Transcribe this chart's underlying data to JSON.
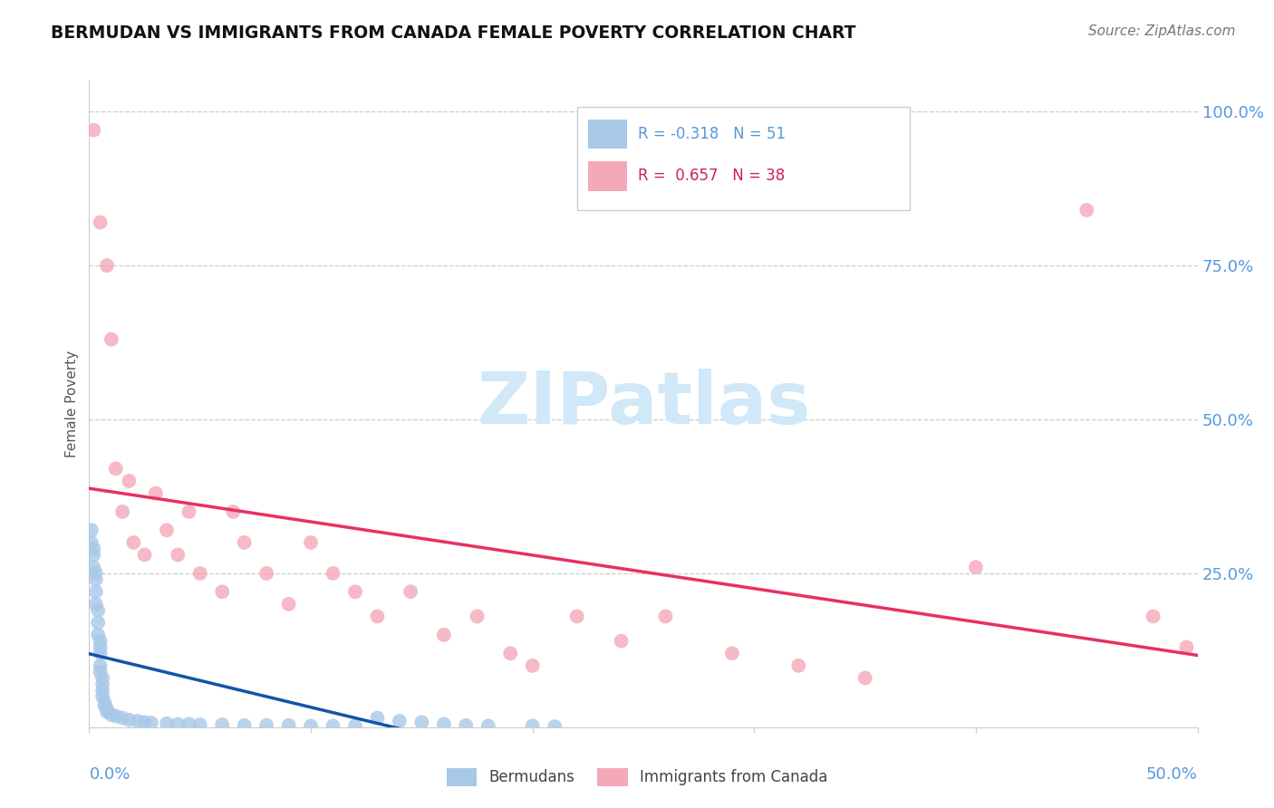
{
  "title": "BERMUDAN VS IMMIGRANTS FROM CANADA FEMALE POVERTY CORRELATION CHART",
  "source_text": "Source: ZipAtlas.com",
  "ylabel": "Female Poverty",
  "legend_label1": "Bermudans",
  "legend_label2": "Immigrants from Canada",
  "R1": -0.318,
  "N1": 51,
  "R2": 0.657,
  "N2": 38,
  "color1": "#A8C8E8",
  "color2": "#F4A8B8",
  "line_color1": "#1155AA",
  "line_color2": "#E83060",
  "axis_label_color": "#5599DD",
  "title_color": "#111111",
  "watermark_color": "#D0E8F8",
  "xlim": [
    0.0,
    0.5
  ],
  "ylim": [
    0.0,
    1.05
  ],
  "ytick_positions": [
    0.25,
    0.5,
    0.75,
    1.0
  ],
  "ytick_labels": [
    "25.0%",
    "50.0%",
    "75.0%",
    "100.0%"
  ],
  "blue_x": [
    0.001,
    0.001,
    0.002,
    0.002,
    0.002,
    0.003,
    0.003,
    0.003,
    0.003,
    0.004,
    0.004,
    0.004,
    0.005,
    0.005,
    0.005,
    0.005,
    0.005,
    0.006,
    0.006,
    0.006,
    0.006,
    0.007,
    0.007,
    0.008,
    0.008,
    0.01,
    0.012,
    0.015,
    0.018,
    0.022,
    0.025,
    0.028,
    0.035,
    0.04,
    0.045,
    0.05,
    0.06,
    0.07,
    0.08,
    0.09,
    0.1,
    0.11,
    0.12,
    0.13,
    0.14,
    0.15,
    0.16,
    0.17,
    0.18,
    0.2,
    0.21
  ],
  "blue_y": [
    0.32,
    0.3,
    0.29,
    0.28,
    0.26,
    0.25,
    0.24,
    0.22,
    0.2,
    0.19,
    0.17,
    0.15,
    0.14,
    0.13,
    0.12,
    0.1,
    0.09,
    0.08,
    0.07,
    0.06,
    0.05,
    0.04,
    0.035,
    0.03,
    0.025,
    0.02,
    0.018,
    0.015,
    0.012,
    0.01,
    0.008,
    0.007,
    0.006,
    0.005,
    0.005,
    0.004,
    0.004,
    0.003,
    0.003,
    0.003,
    0.002,
    0.002,
    0.002,
    0.015,
    0.01,
    0.008,
    0.005,
    0.003,
    0.002,
    0.002,
    0.001
  ],
  "pink_x": [
    0.002,
    0.005,
    0.008,
    0.01,
    0.012,
    0.015,
    0.018,
    0.02,
    0.025,
    0.03,
    0.035,
    0.04,
    0.045,
    0.05,
    0.06,
    0.065,
    0.07,
    0.08,
    0.09,
    0.1,
    0.11,
    0.12,
    0.13,
    0.145,
    0.16,
    0.175,
    0.19,
    0.2,
    0.22,
    0.24,
    0.26,
    0.29,
    0.32,
    0.35,
    0.4,
    0.45,
    0.48,
    0.495
  ],
  "pink_y": [
    0.97,
    0.82,
    0.75,
    0.63,
    0.42,
    0.35,
    0.4,
    0.3,
    0.28,
    0.38,
    0.32,
    0.28,
    0.35,
    0.25,
    0.22,
    0.35,
    0.3,
    0.25,
    0.2,
    0.3,
    0.25,
    0.22,
    0.18,
    0.22,
    0.15,
    0.18,
    0.12,
    0.1,
    0.18,
    0.14,
    0.18,
    0.12,
    0.1,
    0.08,
    0.26,
    0.84,
    0.18,
    0.13
  ]
}
